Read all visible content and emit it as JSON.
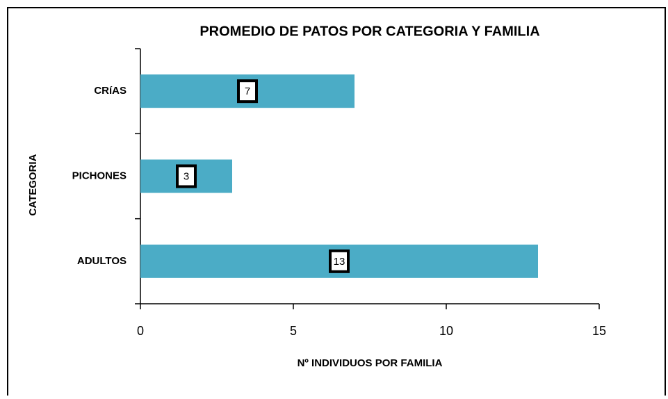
{
  "chart_data": {
    "type": "bar",
    "orientation": "horizontal",
    "title": "PROMEDIO DE PATOS POR CATEGORIA Y FAMILIA",
    "x_label": "Nº INDIVIDUOS POR FAMILIA",
    "y_label": "CATEGORIA",
    "categories": [
      "CRíAS",
      "PICHONES",
      "ADULTOS"
    ],
    "values": [
      7,
      3,
      13
    ],
    "color": "#4bacc6",
    "xlim": [
      0,
      15
    ],
    "xticks": [
      0,
      5,
      10,
      15
    ],
    "grid": false
  }
}
